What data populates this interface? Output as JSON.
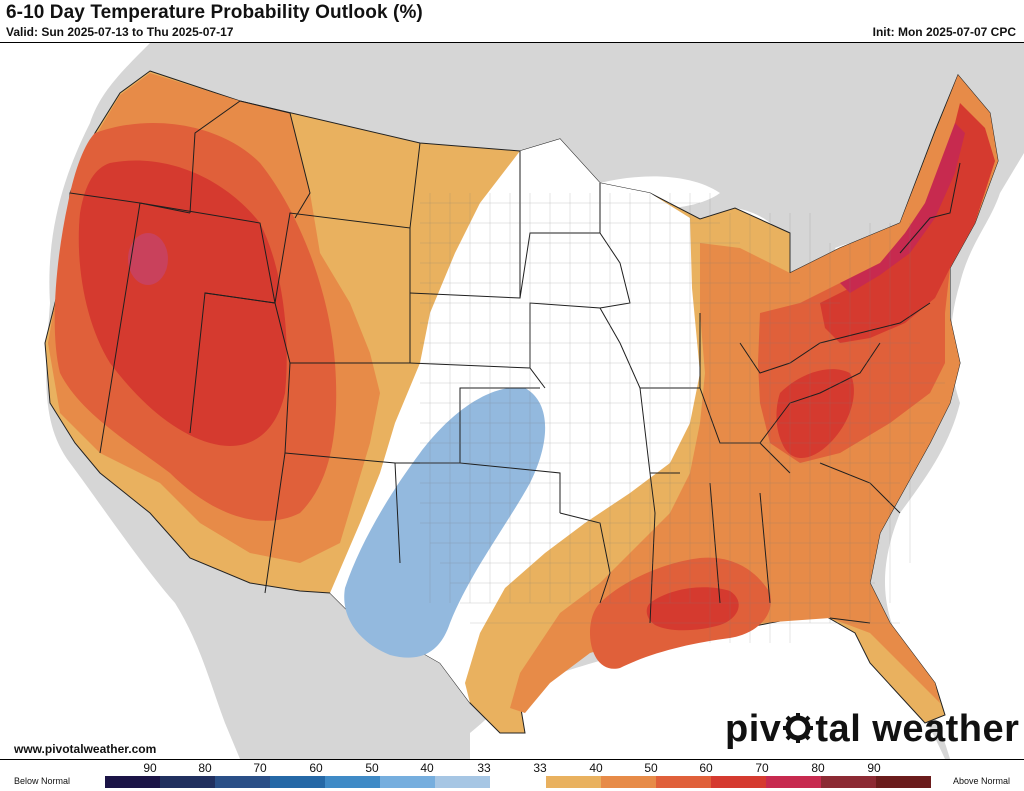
{
  "header": {
    "title": "6-10 Day Temperature Probability Outlook (%)",
    "valid": "Valid: Sun 2025-07-13 to Thu 2025-07-17",
    "init": "Init: Mon 2025-07-07 CPC"
  },
  "footer": {
    "website": "www.pivotalweather.com",
    "brand_left": "piv",
    "brand_right": "tal weather"
  },
  "legend": {
    "below_label": "Below Normal",
    "above_label": "Above Normal",
    "ticks": [
      "90",
      "80",
      "70",
      "60",
      "50",
      "40",
      "33",
      "33",
      "40",
      "50",
      "60",
      "70",
      "80",
      "90"
    ],
    "colors": [
      "#1b1446",
      "#21305f",
      "#2a4f87",
      "#2568a6",
      "#3f8ac6",
      "#76aede",
      "#a6c6e4",
      "#ffffff",
      "#e9b15f",
      "#e78b48",
      "#e0603a",
      "#d53a2f",
      "#c72a4f",
      "#8c2a33",
      "#6b1c1c"
    ]
  },
  "map": {
    "colors": {
      "background_land_outside": "#d4d4d4",
      "water": "#ffffff",
      "near_normal": "#ffffff",
      "above_40": "#e9b15f",
      "above_50": "#e78b48",
      "above_60": "#e0603a",
      "above_70": "#d53a2f",
      "above_80": "#c72a4f",
      "below_40": "#93b9de"
    }
  }
}
